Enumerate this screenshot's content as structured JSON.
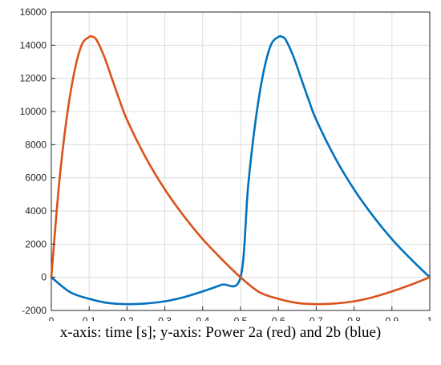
{
  "caption": "x-axis: time [s]; y-axis: Power 2a (red) and 2b (blue)",
  "chart_data": {
    "type": "line",
    "title": "",
    "xlabel": "",
    "ylabel": "",
    "xlim": [
      0,
      1
    ],
    "ylim": [
      -2000,
      16000
    ],
    "grid": true,
    "xticks": [
      "0",
      "0.1",
      "0.2",
      "0.3",
      "0.4",
      "0.5",
      "0.6",
      "0.7",
      "0.8",
      "0.9",
      "1"
    ],
    "yticks": [
      "-2000",
      "0",
      "2000",
      "4000",
      "6000",
      "8000",
      "10000",
      "12000",
      "14000",
      "16000"
    ],
    "series": [
      {
        "color": "#d95319",
        "x": [
          0,
          0.02,
          0.04,
          0.06,
          0.08,
          0.1,
          0.11,
          0.12,
          0.14,
          0.16,
          0.18,
          0.2,
          0.25,
          0.3,
          0.35,
          0.4,
          0.45,
          0.5,
          0.55,
          0.6,
          0.65,
          0.7,
          0.75,
          0.8,
          0.85,
          0.9,
          0.95,
          1.0
        ],
        "y": [
          0,
          5500,
          9500,
          12300,
          14000,
          14500,
          14500,
          14300,
          13300,
          12000,
          10700,
          9500,
          7200,
          5300,
          3700,
          2300,
          1100,
          0,
          -900,
          -1300,
          -1550,
          -1620,
          -1580,
          -1450,
          -1200,
          -850,
          -450,
          0
        ]
      },
      {
        "color": "#0072bd",
        "x": [
          0,
          0.05,
          0.1,
          0.15,
          0.2,
          0.25,
          0.3,
          0.35,
          0.4,
          0.45,
          0.5,
          0.52,
          0.54,
          0.56,
          0.58,
          0.6,
          0.61,
          0.62,
          0.64,
          0.66,
          0.68,
          0.7,
          0.75,
          0.8,
          0.85,
          0.9,
          0.95,
          1.0
        ],
        "y": [
          0,
          -900,
          -1300,
          -1550,
          -1620,
          -1580,
          -1450,
          -1200,
          -850,
          -450,
          0,
          5500,
          9500,
          12300,
          14000,
          14500,
          14500,
          14300,
          13300,
          12000,
          10700,
          9500,
          7200,
          5300,
          3700,
          2300,
          1100,
          0
        ]
      }
    ]
  }
}
